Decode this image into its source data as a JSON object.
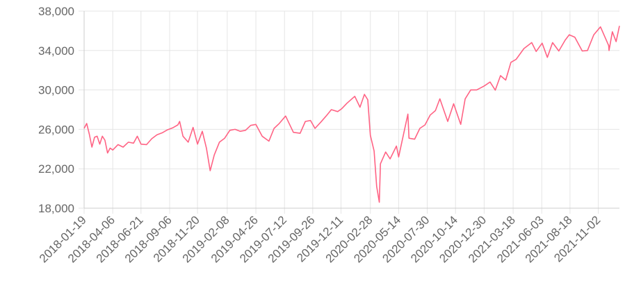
{
  "chart_data": {
    "type": "line",
    "color": "#ff6384",
    "grid": true,
    "x": [
      "2018-01-19",
      "2018-01-26",
      "2018-02-02",
      "2018-02-09",
      "2018-02-16",
      "2018-02-23",
      "2018-03-02",
      "2018-03-09",
      "2018-03-16",
      "2018-03-23",
      "2018-03-30",
      "2018-04-06",
      "2018-04-20",
      "2018-05-04",
      "2018-05-18",
      "2018-06-01",
      "2018-06-11",
      "2018-06-21",
      "2018-07-06",
      "2018-07-20",
      "2018-08-03",
      "2018-08-17",
      "2018-08-31",
      "2018-09-14",
      "2018-09-28",
      "2018-10-03",
      "2018-10-12",
      "2018-10-26",
      "2018-11-08",
      "2018-11-20",
      "2018-12-03",
      "2018-12-14",
      "2018-12-24",
      "2019-01-04",
      "2019-01-18",
      "2019-02-01",
      "2019-02-15",
      "2019-03-01",
      "2019-03-15",
      "2019-03-29",
      "2019-04-12",
      "2019-04-26",
      "2019-05-13",
      "2019-05-31",
      "2019-06-14",
      "2019-06-28",
      "2019-07-15",
      "2019-08-05",
      "2019-08-23",
      "2019-09-06",
      "2019-09-20",
      "2019-10-02",
      "2019-10-18",
      "2019-11-01",
      "2019-11-15",
      "2019-12-02",
      "2019-12-13",
      "2019-12-27",
      "2020-01-17",
      "2020-01-31",
      "2020-02-12",
      "2020-02-21",
      "2020-02-28",
      "2020-03-09",
      "2020-03-16",
      "2020-03-23",
      "2020-03-26",
      "2020-04-09",
      "2020-04-21",
      "2020-05-08",
      "2020-05-14",
      "2020-06-08",
      "2020-06-11",
      "2020-06-26",
      "2020-07-10",
      "2020-07-24",
      "2020-08-07",
      "2020-08-21",
      "2020-09-02",
      "2020-09-23",
      "2020-10-09",
      "2020-10-28",
      "2020-11-09",
      "2020-11-24",
      "2020-12-10",
      "2020-12-30",
      "2021-01-15",
      "2021-01-29",
      "2021-02-12",
      "2021-02-26",
      "2021-03-12",
      "2021-03-26",
      "2021-04-16",
      "2021-05-07",
      "2021-05-19",
      "2021-06-04",
      "2021-06-18",
      "2021-07-02",
      "2021-07-19",
      "2021-08-05",
      "2021-08-16",
      "2021-08-31",
      "2021-09-20",
      "2021-10-04",
      "2021-10-21",
      "2021-11-08",
      "2021-11-30",
      "2021-12-01",
      "2021-12-10",
      "2021-12-20",
      "2021-12-29"
    ],
    "series": [
      {
        "values": [
          26100,
          26600,
          25500,
          24200,
          25200,
          25300,
          24500,
          25300,
          24900,
          23600,
          24100,
          23900,
          24450,
          24200,
          24700,
          24600,
          25300,
          24500,
          24450,
          25050,
          25450,
          25650,
          25950,
          26150,
          26450,
          26800,
          25300,
          24700,
          26200,
          24500,
          25800,
          24100,
          21800,
          23400,
          24700,
          25100,
          25900,
          26000,
          25800,
          25900,
          26400,
          26500,
          25300,
          24800,
          26100,
          26600,
          27350,
          25700,
          25600,
          26800,
          26900,
          26100,
          26750,
          27350,
          28000,
          27800,
          28100,
          28650,
          29350,
          28250,
          29550,
          29000,
          25400,
          23800,
          20200,
          18600,
          22500,
          23700,
          23000,
          24300,
          23200,
          27550,
          25100,
          25000,
          26100,
          26450,
          27450,
          27900,
          29100,
          26800,
          28600,
          26500,
          29100,
          30000,
          30000,
          30400,
          30800,
          29980,
          31450,
          31000,
          32800,
          33100,
          34200,
          34800,
          33900,
          34750,
          33300,
          34800,
          33950,
          35050,
          35600,
          35350,
          33950,
          34000,
          35600,
          36400,
          34500,
          34000,
          35900,
          34900,
          36500
        ]
      }
    ],
    "xlim": [
      "2018-01-19",
      "2021-12-29"
    ],
    "xticks": [
      "2018-01-19",
      "2018-04-06",
      "2018-06-21",
      "2018-09-06",
      "2018-11-20",
      "2019-02-08",
      "2019-04-26",
      "2019-07-12",
      "2019-09-26",
      "2019-12-11",
      "2020-02-28",
      "2020-05-14",
      "2020-07-30",
      "2020-10-14",
      "2020-12-30",
      "2021-03-18",
      "2021-06-03",
      "2021-08-18",
      "2021-11-02"
    ],
    "ylim": [
      18000,
      38000
    ],
    "yticks": [
      {
        "value": 18000,
        "label": "18,000"
      },
      {
        "value": 22000,
        "label": "22,000"
      },
      {
        "value": 26000,
        "label": "26,000"
      },
      {
        "value": 30000,
        "label": "30,000"
      },
      {
        "value": 34000,
        "label": "34,000"
      },
      {
        "value": 38000,
        "label": "38,000"
      }
    ]
  }
}
